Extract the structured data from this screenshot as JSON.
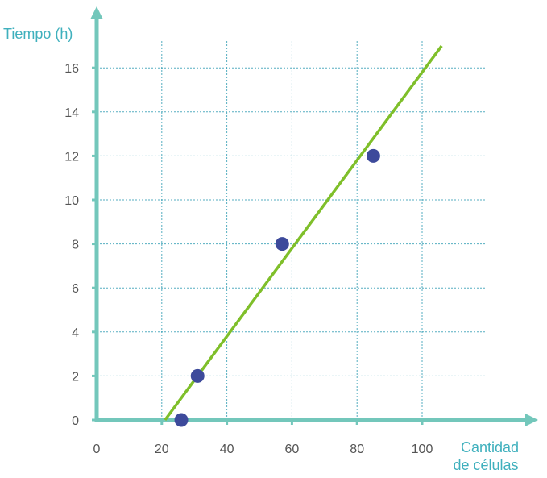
{
  "chart_data": {
    "type": "scatter",
    "xlabel": [
      "Cantidad",
      "de células"
    ],
    "ylabel": "Tiempo (h)",
    "xlim": [
      0,
      100
    ],
    "ylim": [
      0,
      16
    ],
    "x_ticks": [
      0,
      20,
      40,
      60,
      80,
      100
    ],
    "y_ticks": [
      0,
      2,
      4,
      6,
      8,
      10,
      12,
      14,
      16
    ],
    "grid": true,
    "series": [
      {
        "type": "scatter",
        "points": [
          {
            "x": 26,
            "y": 0
          },
          {
            "x": 31,
            "y": 2
          },
          {
            "x": 57,
            "y": 8
          },
          {
            "x": 85,
            "y": 12
          }
        ]
      },
      {
        "type": "line",
        "points": [
          {
            "x": 21,
            "y": 0
          },
          {
            "x": 106,
            "y": 17
          }
        ]
      }
    ]
  },
  "colors": {
    "axis": "#73c7bb",
    "grid": "#2a9ab0",
    "label": "#3fb0bd",
    "tick_text": "#555555",
    "point": "#3d4a9b",
    "line": "#7fbf2a"
  }
}
